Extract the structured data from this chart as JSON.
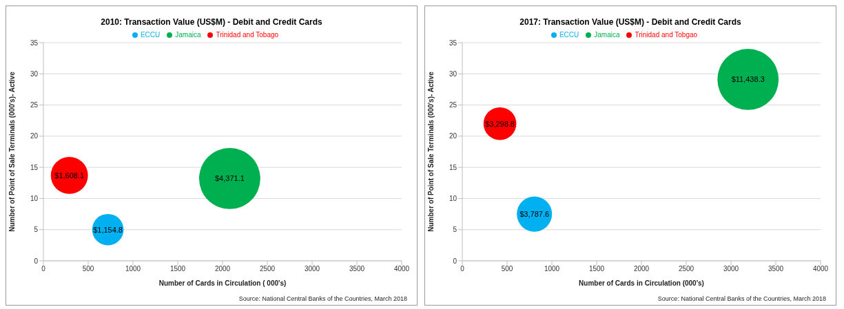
{
  "chart_data": [
    {
      "type": "bubble",
      "title": "2010: Transaction Value (US$M) - Debit and Credit Cards",
      "xlabel": "Number of Cards in Circulation ( 000's)",
      "ylabel": "Number of Point of Sale Terminals (000's)- Active",
      "xlim": [
        0,
        4000
      ],
      "xticks": [
        0,
        500,
        1000,
        1500,
        2000,
        2500,
        3000,
        3500,
        4000
      ],
      "ylim": [
        0,
        35
      ],
      "yticks": [
        0,
        5,
        10,
        15,
        20,
        25,
        30,
        35
      ],
      "grid": "y",
      "legend": "top",
      "annotations": [
        "Source: National Central Banks of the Countries, March 2018"
      ],
      "series": [
        {
          "name": "Trinidad and Tobago",
          "color": "#ff0000",
          "x": [
            290
          ],
          "values": [
            13.7
          ],
          "sizes": [
            1608.1
          ],
          "value_labels": [
            "$1,608.1"
          ]
        },
        {
          "name": "ECCU",
          "color": "#00b0f0",
          "x": [
            720
          ],
          "values": [
            5.0
          ],
          "sizes": [
            1154.8
          ],
          "value_labels": [
            "$1,154.8"
          ]
        },
        {
          "name": "Jamaica",
          "color": "#00b050",
          "x": [
            2080
          ],
          "values": [
            13.2
          ],
          "sizes": [
            4371.1
          ],
          "value_labels": [
            "$4,371.1"
          ]
        }
      ]
    },
    {
      "type": "bubble",
      "title": "2017: Transaction Value (US$M) - Debit and Credit Cards",
      "xlabel": "Number of Cards in Circulation (000's)",
      "ylabel": "Number of Point of Sale Terminals (000's)- Active",
      "xlim": [
        0,
        4000
      ],
      "xticks": [
        0,
        500,
        1000,
        1500,
        2000,
        2500,
        3000,
        3500,
        4000
      ],
      "ylim": [
        0,
        35
      ],
      "yticks": [
        0,
        5,
        10,
        15,
        20,
        25,
        30,
        35
      ],
      "grid": "y",
      "legend": "top",
      "annotations": [
        "Source: National Central Banks of the Countries, March 2018"
      ],
      "series": [
        {
          "name": "Trinidad and Tobgao",
          "color": "#ff0000",
          "x": [
            420
          ],
          "values": [
            22.0
          ],
          "sizes": [
            3298.8
          ],
          "value_labels": [
            "$3,298.8"
          ]
        },
        {
          "name": "ECCU",
          "color": "#00b0f0",
          "x": [
            805
          ],
          "values": [
            7.5
          ],
          "sizes": [
            3787.6
          ],
          "value_labels": [
            "$3,787.6"
          ]
        },
        {
          "name": "Jamaica",
          "color": "#00b050",
          "x": [
            3190
          ],
          "values": [
            29.1
          ],
          "sizes": [
            11438.3
          ],
          "value_labels": [
            "$11,438.3"
          ]
        }
      ]
    }
  ]
}
